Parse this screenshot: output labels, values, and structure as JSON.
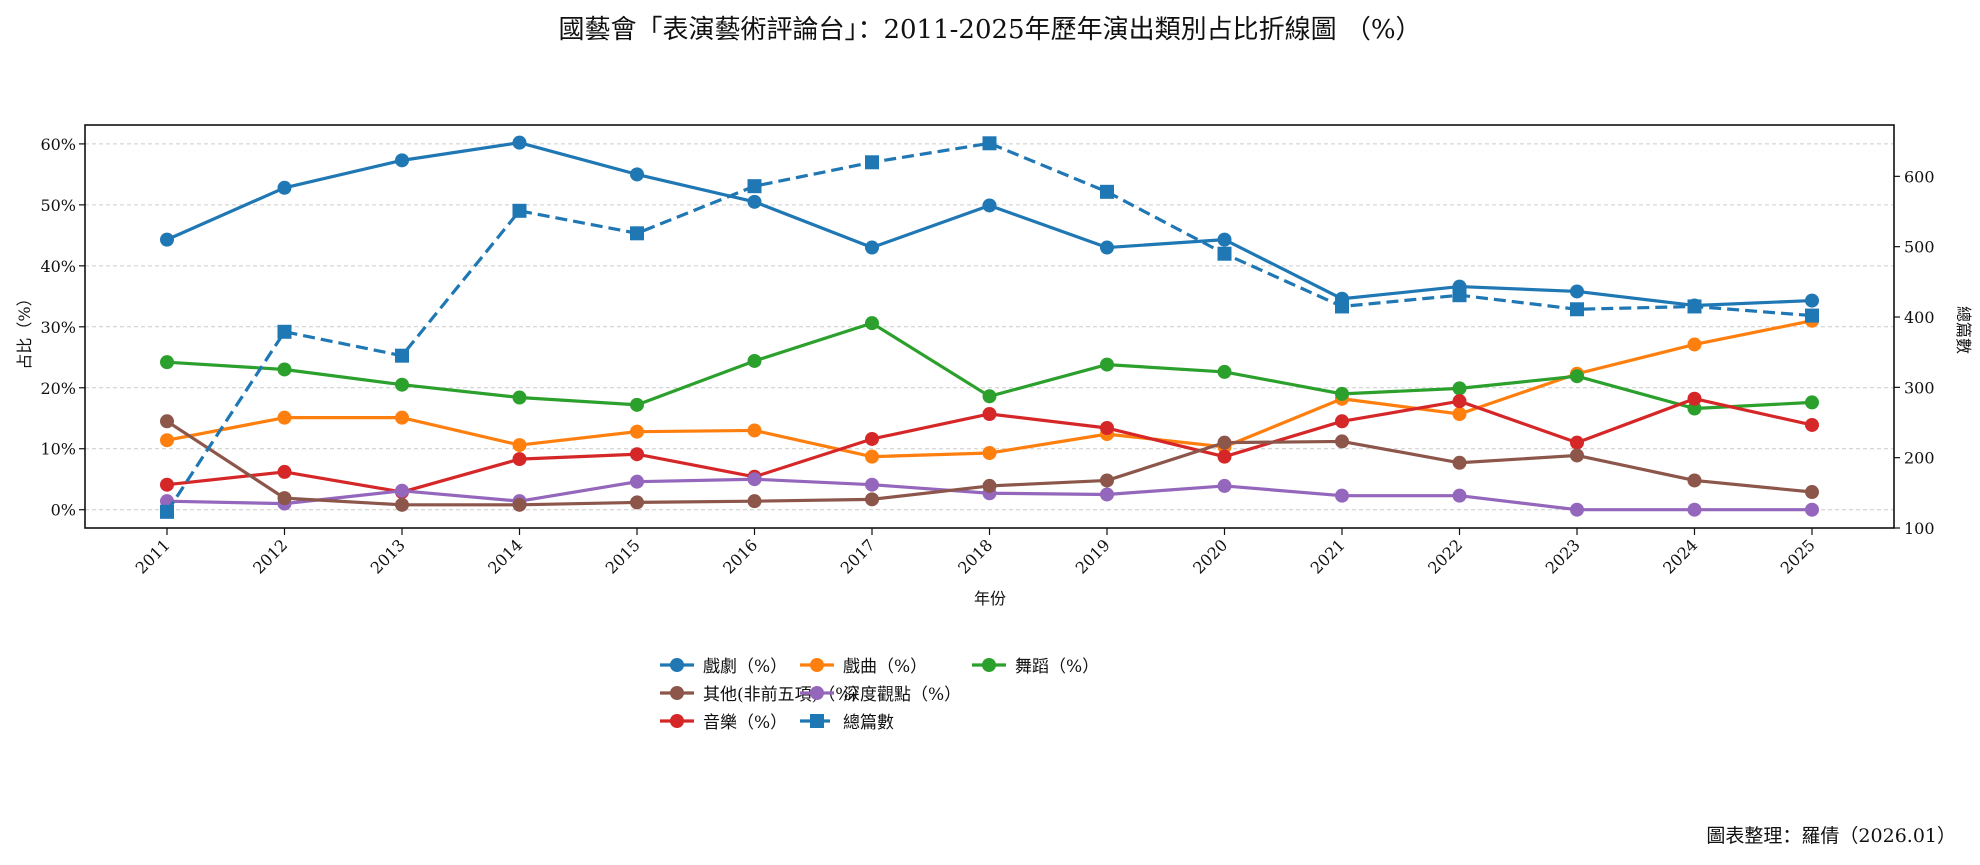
{
  "chart_data": {
    "type": "line",
    "title": "國藝會「表演藝術評論台」：2011-2025年歷年演出類別占比折線圖 （%）",
    "xlabel": "年份",
    "ylabel": "占比（%）",
    "ylabel_right": "總篇數",
    "x": [
      "2011",
      "2012",
      "2013",
      "2014",
      "2015",
      "2016",
      "2017",
      "2018",
      "2019",
      "2020",
      "2021",
      "2022",
      "2023",
      "2024",
      "2025"
    ],
    "ylim": [
      -3,
      63.1
    ],
    "yticks": [
      0,
      10,
      20,
      30,
      40,
      50,
      60
    ],
    "ytick_labels": [
      "0%",
      "10%",
      "20%",
      "30%",
      "40%",
      "50%",
      "60%"
    ],
    "ylim_right": [
      100,
      673
    ],
    "yticks_right": [
      100,
      200,
      300,
      400,
      500,
      600
    ],
    "grid": true,
    "legend_position": "bottom-center",
    "series": [
      {
        "name": "戲劇（%）",
        "color": "#1f77b4",
        "axis": "left",
        "style": "solid",
        "marker": "circle",
        "values": [
          44.3,
          52.8,
          57.3,
          60.2,
          55.0,
          50.5,
          43.0,
          49.9,
          43.0,
          44.3,
          34.6,
          36.6,
          35.8,
          33.5,
          34.3
        ]
      },
      {
        "name": "戲曲（%）",
        "color": "#ff7f0e",
        "axis": "left",
        "style": "solid",
        "marker": "circle",
        "values": [
          11.4,
          15.1,
          15.1,
          10.6,
          12.8,
          13.0,
          8.7,
          9.3,
          12.4,
          10.3,
          18.2,
          15.7,
          22.3,
          27.1,
          31.0
        ]
      },
      {
        "name": "舞蹈（%）",
        "color": "#2ca02c",
        "axis": "left",
        "style": "solid",
        "marker": "circle",
        "values": [
          24.2,
          23.0,
          20.5,
          18.4,
          17.2,
          24.4,
          30.6,
          18.6,
          23.8,
          22.6,
          19.0,
          19.9,
          21.9,
          16.6,
          17.6
        ]
      },
      {
        "name": "音樂（%）",
        "color": "#d62728",
        "axis": "left",
        "style": "solid",
        "marker": "circle",
        "values": [
          4.1,
          6.2,
          2.9,
          8.3,
          9.1,
          5.4,
          11.6,
          15.7,
          13.4,
          8.7,
          14.5,
          17.8,
          11.0,
          18.2,
          13.9
        ]
      },
      {
        "name": "深度觀點（%）",
        "color": "#9467bd",
        "axis": "left",
        "style": "solid",
        "marker": "circle",
        "values": [
          1.4,
          1.0,
          3.1,
          1.4,
          4.6,
          5.0,
          4.1,
          2.7,
          2.5,
          3.9,
          2.3,
          2.3,
          0.0,
          0.0,
          0.0
        ]
      },
      {
        "name": "其他(非前五項)（%）",
        "color": "#8c564b",
        "axis": "left",
        "style": "solid",
        "marker": "circle",
        "values": [
          14.5,
          1.9,
          0.8,
          0.8,
          1.2,
          1.4,
          1.7,
          3.9,
          4.8,
          11.0,
          11.2,
          7.7,
          8.9,
          4.8,
          2.9
        ]
      },
      {
        "name": "總篇數",
        "color": "#1f77b4",
        "axis": "right",
        "style": "dashed",
        "marker": "square",
        "values": [
          123,
          379,
          345,
          551,
          519,
          586,
          620,
          647,
          578,
          490,
          415,
          431,
          411,
          415,
          402
        ]
      }
    ],
    "legend_order": [
      0,
      5,
      3,
      1,
      4,
      6,
      2
    ],
    "footer": "圖表整理：羅倩（2026.01）"
  }
}
